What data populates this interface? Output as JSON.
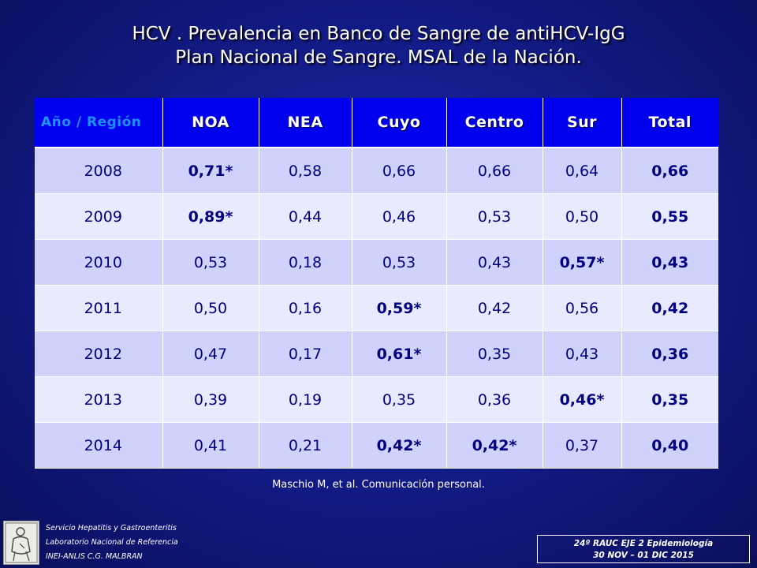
{
  "title": {
    "line1": "HCV . Prevalencia en Banco de Sangre de antiHCV-IgG",
    "line2": "Plan Nacional de Sangre. MSAL de la Nación."
  },
  "table": {
    "headers": [
      "Año / Región",
      "NOA",
      "NEA",
      "Cuyo",
      "Centro",
      "Sur",
      "Total"
    ],
    "rows": [
      {
        "year": "2008",
        "cells": [
          "0,71*",
          "0,58",
          "0,66",
          "0,66",
          "0,64",
          "0,66"
        ]
      },
      {
        "year": "2009",
        "cells": [
          "0,89*",
          "0,44",
          "0,46",
          "0,53",
          "0,50",
          "0,55"
        ]
      },
      {
        "year": "2010",
        "cells": [
          "0,53",
          "0,18",
          "0,53",
          "0,43",
          "0,57*",
          "0,43"
        ]
      },
      {
        "year": "2011",
        "cells": [
          "0,50",
          "0,16",
          "0,59*",
          "0,42",
          "0,56",
          "0,42"
        ]
      },
      {
        "year": "2012",
        "cells": [
          "0,47",
          "0,17",
          "0,61*",
          "0,35",
          "0,43",
          "0,36"
        ]
      },
      {
        "year": "2013",
        "cells": [
          "0,39",
          "0,19",
          "0,35",
          "0,36",
          "0,46*",
          "0,35"
        ]
      },
      {
        "year": "2014",
        "cells": [
          "0,41",
          "0,21",
          "0,42*",
          "0,42*",
          "0,37",
          "0,40"
        ]
      }
    ]
  },
  "reference": "Maschio M, et al. Comunicación personal.",
  "footer": {
    "line1": "Servicio Hepatitis y Gastroenteritis",
    "line2": "Laboratorio Nacional de Referencia",
    "line3": "INEI-ANLIS C.G. MALBRAN"
  },
  "event": {
    "line1": "24º RAUC  EJE 2  Epidemiología",
    "line2": "30 NOV – 01 DIC  2015"
  },
  "colors": {
    "background": "#131c8a",
    "header_fill": "#0000ee",
    "row_dark": "#cfd3fb",
    "row_light": "#e8eafd",
    "cell_text": "#000080",
    "header_first_text": "#1e90ff"
  }
}
